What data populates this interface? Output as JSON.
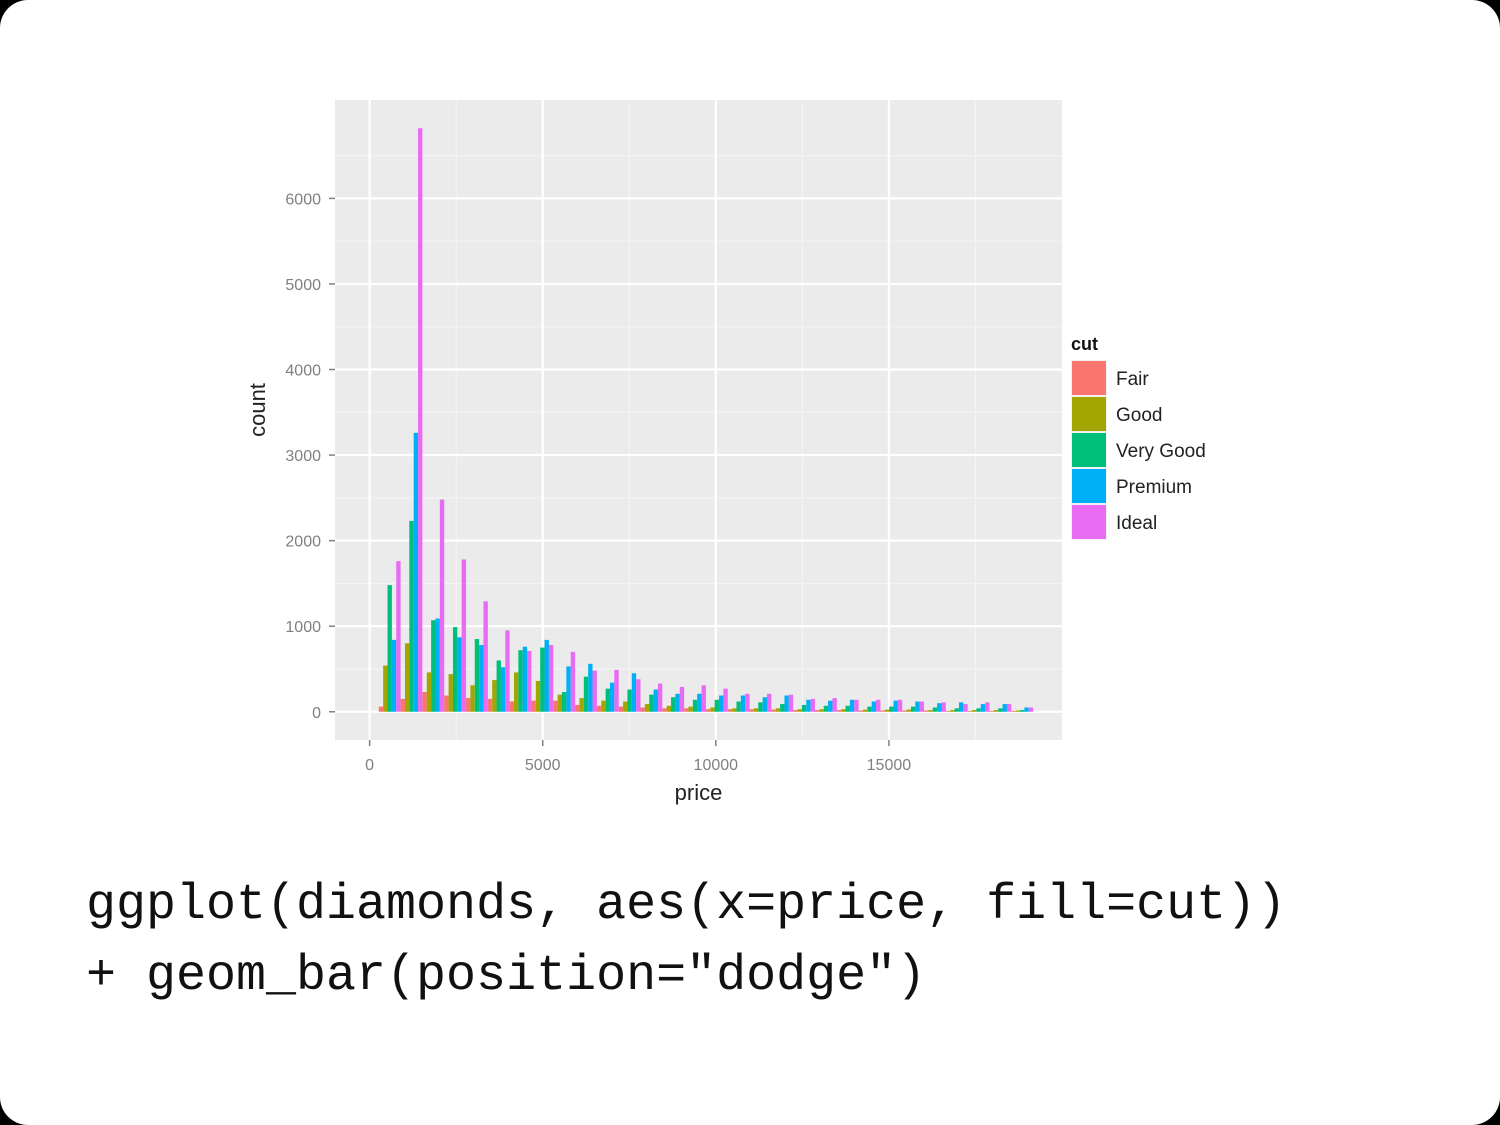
{
  "chart_data": {
    "type": "bar",
    "xlabel": "price",
    "ylabel": "count",
    "xlim": [
      -1000,
      20000
    ],
    "ylim": [
      -330,
      7150
    ],
    "x_ticks": [
      0,
      5000,
      10000,
      15000
    ],
    "y_ticks": [
      0,
      1000,
      2000,
      3000,
      4000,
      5000,
      6000
    ],
    "x_tick_labels": [
      "0",
      "5000",
      "10000",
      "15000"
    ],
    "y_tick_labels": [
      "0",
      "1000",
      "2000",
      "3000",
      "4000",
      "5000",
      "6000"
    ],
    "grid": true,
    "legend": {
      "title": "cut",
      "placement": "right"
    },
    "bin_width": 630,
    "bin_centers": [
      580,
      1210,
      1840,
      2470,
      3100,
      3730,
      4360,
      4990,
      5620,
      6250,
      6880,
      7510,
      8140,
      8770,
      9400,
      10030,
      10660,
      11290,
      11920,
      12550,
      13180,
      13810,
      14440,
      15070,
      15700,
      16330,
      16960,
      17590,
      18220,
      18850
    ],
    "series": [
      {
        "name": "Fair",
        "color": "#F8766D",
        "values": [
          60,
          150,
          230,
          190,
          160,
          150,
          120,
          130,
          130,
          80,
          70,
          60,
          50,
          40,
          40,
          30,
          30,
          30,
          25,
          20,
          20,
          20,
          15,
          15,
          15,
          15,
          10,
          10,
          10,
          10
        ]
      },
      {
        "name": "Good",
        "color": "#A3A500",
        "values": [
          540,
          800,
          460,
          440,
          310,
          370,
          460,
          360,
          200,
          160,
          130,
          120,
          90,
          70,
          60,
          50,
          40,
          40,
          40,
          30,
          30,
          30,
          25,
          25,
          25,
          20,
          20,
          20,
          20,
          15
        ]
      },
      {
        "name": "Very Good",
        "color": "#00BF7D",
        "values": [
          1480,
          2230,
          1070,
          990,
          850,
          600,
          720,
          750,
          230,
          410,
          270,
          260,
          200,
          170,
          140,
          140,
          120,
          110,
          90,
          80,
          70,
          70,
          60,
          60,
          60,
          50,
          40,
          40,
          40,
          20
        ]
      },
      {
        "name": "Premium",
        "color": "#00B0F6",
        "values": [
          840,
          3260,
          1090,
          870,
          780,
          520,
          760,
          840,
          530,
          560,
          340,
          450,
          260,
          210,
          210,
          190,
          190,
          170,
          190,
          140,
          130,
          140,
          120,
          130,
          120,
          100,
          110,
          90,
          90,
          50
        ]
      },
      {
        "name": "Ideal",
        "color": "#E76BF3",
        "values": [
          1760,
          6820,
          2480,
          1780,
          1290,
          950,
          710,
          780,
          700,
          480,
          490,
          380,
          330,
          290,
          310,
          270,
          210,
          210,
          200,
          150,
          160,
          140,
          140,
          140,
          120,
          110,
          90,
          110,
          90,
          50
        ]
      }
    ]
  },
  "caption": {
    "line1": "ggplot(diamonds, aes(x=price, fill=cut))",
    "line2": "+ geom_bar(position=\"dodge\")"
  }
}
